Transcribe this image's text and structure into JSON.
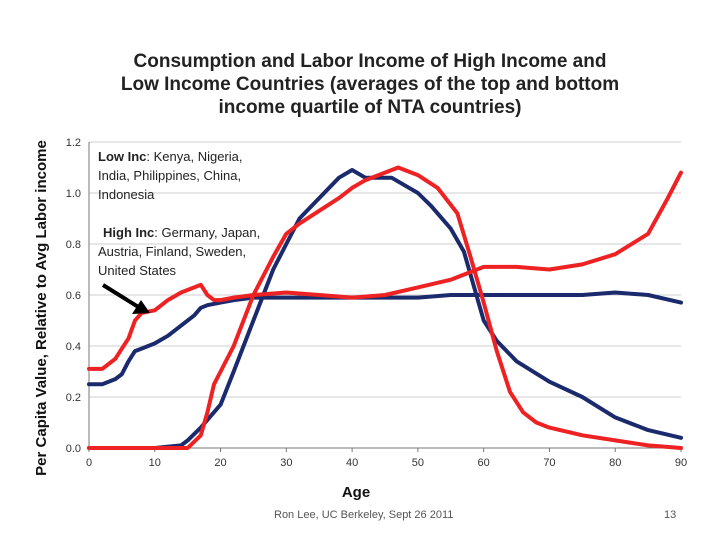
{
  "slide": {
    "footer_text": "Ron Lee, UC Berkeley, Sept 26 2011",
    "page_number": "13"
  },
  "chart_data": {
    "type": "line",
    "title_lines": [
      "Consumption and Labor Income of High Income and",
      "Low Income Countries (averages of the top and bottom",
      "income quartile of NTA countries)"
    ],
    "xlabel": "Age",
    "ylabel": "Per Capita Value, Relative to Avg Labor income",
    "xlim": [
      0,
      90
    ],
    "ylim": [
      0,
      1.2
    ],
    "x_ticks": [
      "0",
      "10",
      "20",
      "30",
      "40",
      "50",
      "60",
      "70",
      "80",
      "90"
    ],
    "y_ticks": [
      "0.0",
      "0.2",
      "0.4",
      "0.6",
      "0.8",
      "1.0",
      "1.2"
    ],
    "grid": "horizontal",
    "legend": {
      "low_inc": {
        "label": "Low Inc",
        "lines": [
          ": Kenya, Nigeria,",
          "India, Philippines, China,",
          "Indonesia"
        ],
        "color": "#ee2222"
      },
      "high_inc": {
        "label": "High Inc",
        "lines": [
          ": Germany, Japan,",
          "Austria, Finland, Sweden,",
          "United States"
        ],
        "color": "#1a2a6c"
      }
    },
    "series": [
      {
        "group": "high_inc",
        "color": "#1a2a6c",
        "x": [
          0,
          2,
          4,
          5,
          6,
          7,
          8,
          10,
          12,
          14,
          16,
          17,
          18,
          20,
          22,
          25,
          30,
          35,
          40,
          45,
          50,
          55,
          60,
          65,
          70,
          75,
          80,
          85,
          90
        ],
        "values": [
          0.25,
          0.25,
          0.27,
          0.29,
          0.34,
          0.38,
          0.39,
          0.41,
          0.44,
          0.48,
          0.52,
          0.55,
          0.56,
          0.57,
          0.58,
          0.59,
          0.59,
          0.59,
          0.59,
          0.59,
          0.59,
          0.6,
          0.6,
          0.6,
          0.6,
          0.6,
          0.61,
          0.6,
          0.57
        ]
      },
      {
        "group": "high_inc",
        "color": "#1a2a6c",
        "x": [
          0,
          5,
          10,
          14,
          15,
          17,
          20,
          22,
          25,
          28,
          30,
          32,
          35,
          38,
          40,
          42,
          44,
          46,
          48,
          50,
          52,
          55,
          57,
          60,
          62,
          65,
          70,
          75,
          80,
          85,
          90
        ],
        "values": [
          0.0,
          0.0,
          0.0,
          0.01,
          0.03,
          0.08,
          0.17,
          0.3,
          0.5,
          0.7,
          0.8,
          0.9,
          0.98,
          1.06,
          1.09,
          1.06,
          1.06,
          1.06,
          1.03,
          1.0,
          0.95,
          0.86,
          0.77,
          0.5,
          0.42,
          0.34,
          0.26,
          0.2,
          0.12,
          0.07,
          0.04
        ]
      },
      {
        "group": "low_inc",
        "color": "#ee2222",
        "x": [
          0,
          2,
          4,
          5,
          6,
          7,
          8,
          10,
          12,
          14,
          16,
          17,
          18,
          19,
          20,
          22,
          25,
          30,
          35,
          40,
          45,
          50,
          55,
          60,
          65,
          70,
          75,
          80,
          85,
          88,
          90
        ],
        "values": [
          0.31,
          0.31,
          0.35,
          0.39,
          0.43,
          0.5,
          0.53,
          0.54,
          0.58,
          0.61,
          0.63,
          0.64,
          0.6,
          0.58,
          0.58,
          0.59,
          0.6,
          0.61,
          0.6,
          0.59,
          0.6,
          0.63,
          0.66,
          0.71,
          0.71,
          0.7,
          0.72,
          0.76,
          0.84,
          0.98,
          1.08
        ]
      },
      {
        "group": "low_inc",
        "color": "#ee2222",
        "x": [
          0,
          5,
          10,
          15,
          17,
          18,
          19,
          20,
          22,
          25,
          28,
          30,
          32,
          35,
          38,
          40,
          42,
          45,
          47,
          50,
          53,
          56,
          58,
          60,
          62,
          64,
          66,
          68,
          70,
          75,
          80,
          85,
          90
        ],
        "values": [
          0.0,
          0.0,
          0.0,
          0.0,
          0.05,
          0.14,
          0.25,
          0.3,
          0.4,
          0.6,
          0.75,
          0.84,
          0.88,
          0.93,
          0.98,
          1.02,
          1.05,
          1.08,
          1.1,
          1.07,
          1.02,
          0.92,
          0.75,
          0.57,
          0.38,
          0.22,
          0.14,
          0.1,
          0.08,
          0.05,
          0.03,
          0.01,
          0.0
        ]
      }
    ]
  }
}
